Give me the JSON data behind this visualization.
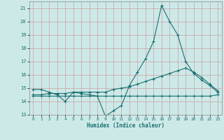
{
  "xlabel": "Humidex (Indice chaleur)",
  "xlim": [
    -0.5,
    23.5
  ],
  "ylim": [
    13,
    21.5
  ],
  "yticks": [
    13,
    14,
    15,
    16,
    17,
    18,
    19,
    20,
    21
  ],
  "xticks": [
    0,
    1,
    2,
    3,
    4,
    5,
    6,
    7,
    8,
    9,
    10,
    11,
    12,
    13,
    14,
    15,
    16,
    17,
    18,
    19,
    20,
    21,
    22,
    23
  ],
  "background_color": "#cce9e8",
  "grid_color": "#c8a0a0",
  "line_color": "#1a7070",
  "x": [
    0,
    1,
    2,
    3,
    4,
    5,
    6,
    7,
    8,
    9,
    10,
    11,
    12,
    13,
    14,
    15,
    16,
    17,
    18,
    19,
    20,
    21,
    22,
    23
  ],
  "y_main": [
    14.9,
    14.9,
    14.7,
    14.5,
    14.0,
    14.7,
    14.6,
    14.5,
    14.4,
    12.9,
    13.3,
    13.7,
    15.2,
    16.2,
    17.2,
    18.5,
    21.2,
    20.0,
    19.0,
    17.0,
    16.1,
    15.6,
    15.2,
    14.7
  ],
  "y_rise": [
    14.5,
    14.5,
    14.6,
    14.6,
    14.6,
    14.7,
    14.7,
    14.7,
    14.7,
    14.7,
    14.9,
    15.0,
    15.1,
    15.3,
    15.5,
    15.7,
    15.9,
    16.1,
    16.3,
    16.5,
    16.2,
    15.8,
    15.3,
    14.8
  ],
  "y_flat": [
    14.4,
    14.4,
    14.4,
    14.4,
    14.4,
    14.4,
    14.4,
    14.4,
    14.4,
    14.4,
    14.4,
    14.4,
    14.4,
    14.4,
    14.4,
    14.4,
    14.4,
    14.4,
    14.4,
    14.4,
    14.4,
    14.4,
    14.4,
    14.5
  ]
}
